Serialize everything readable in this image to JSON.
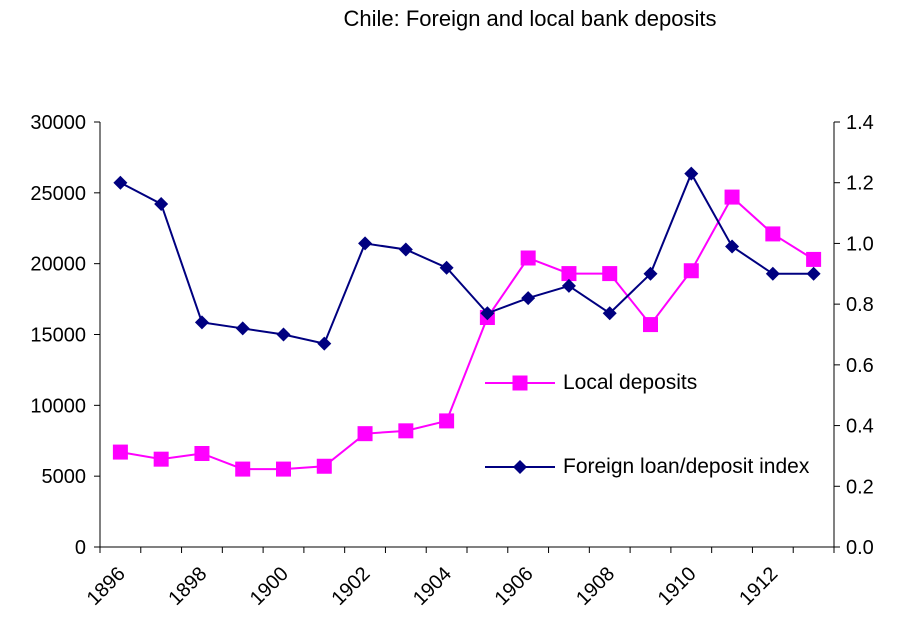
{
  "chart_data": {
    "type": "line",
    "title": "Chile: Foreign and local bank deposits",
    "categories": [
      "1896",
      null,
      "1898",
      null,
      "1900",
      null,
      "1902",
      null,
      "1904",
      null,
      "1906",
      null,
      "1908",
      null,
      "1910",
      null,
      "1912",
      null
    ],
    "series": [
      {
        "name": "Local deposits",
        "color": "#ff00ff",
        "marker": "square",
        "values": [
          6700,
          6200,
          6600,
          5500,
          5500,
          5700,
          8000,
          8200,
          8900,
          16200,
          20400,
          19300,
          19300,
          15700,
          19500,
          24700,
          22100,
          20300
        ]
      },
      {
        "name": "Foreign loan/deposit index",
        "color": "#000080",
        "marker": "diamond",
        "axis": "y2",
        "values": [
          1.2,
          1.13,
          0.74,
          0.72,
          0.7,
          0.67,
          1.0,
          0.98,
          0.92,
          0.77,
          0.82,
          0.86,
          0.77,
          0.9,
          1.23,
          0.99,
          0.9,
          0.9
        ]
      }
    ],
    "ylim": [
      0,
      30000
    ],
    "yticks": [
      0,
      5000,
      10000,
      15000,
      20000,
      25000,
      30000
    ],
    "y2lim": [
      0,
      1.4
    ],
    "y2ticks": [
      {
        "value": 0,
        "label": "0.0"
      },
      0.2,
      0.4,
      0.6,
      0.8,
      {
        "value": 1,
        "label": "1.0"
      },
      1.2,
      1.4
    ],
    "grid": false
  }
}
